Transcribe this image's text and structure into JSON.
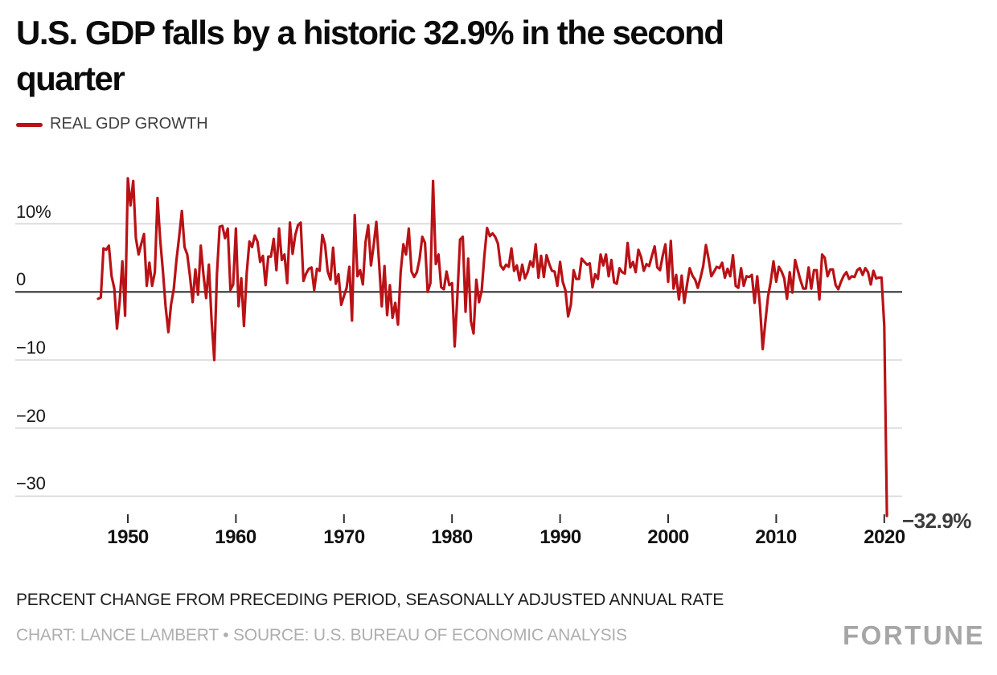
{
  "title_lines": [
    "U.S. GDP falls by a historic 32.9% in the second",
    "quarter"
  ],
  "legend": {
    "label": "REAL GDP GROWTH",
    "color": "#b91216"
  },
  "footnote": "PERCENT CHANGE FROM PRECEDING PERIOD, SEASONALLY ADJUSTED ANNUAL RATE",
  "credit": "CHART: LANCE LAMBERT • SOURCE: U.S. BUREAU OF ECONOMIC ANALYSIS",
  "brand": "FORTUNE",
  "chart_data": {
    "type": "line",
    "title": "U.S. GDP falls by a historic 32.9% in the second quarter",
    "xlabel": "",
    "ylabel": "Percent change from preceding period, seasonally adjusted annual rate",
    "xlim": [
      1947.25,
      2020.25
    ],
    "ylim": [
      -34.5,
      17.5
    ],
    "grid": true,
    "legend_position": "top-left",
    "xticks": [
      1950,
      1960,
      1970,
      1980,
      1990,
      2000,
      2010,
      2020
    ],
    "yticks": [
      {
        "value": 10,
        "label": "10%"
      },
      {
        "value": 0,
        "label": "0"
      },
      {
        "value": -10,
        "label": "−10"
      },
      {
        "value": -20,
        "label": "−20"
      },
      {
        "value": -30,
        "label": "−30"
      }
    ],
    "annotation": {
      "text": "−32.9%",
      "x": 2020.25,
      "y": -32.9
    },
    "series": [
      {
        "name": "REAL GDP GROWTH",
        "color": "#b91216",
        "frequency": "quarterly",
        "start_year": 1947,
        "start_quarter": 2,
        "values": [
          -1.0,
          -0.8,
          6.4,
          6.2,
          6.8,
          2.3,
          0.5,
          -5.4,
          -1.3,
          4.5,
          -3.5,
          16.7,
          12.7,
          16.3,
          7.9,
          5.5,
          7.1,
          8.5,
          0.9,
          4.3,
          0.9,
          2.9,
          13.8,
          7.6,
          3.1,
          -2.2,
          -5.9,
          -1.9,
          0.4,
          4.6,
          8.1,
          11.9,
          6.6,
          5.5,
          2.4,
          -1.5,
          3.3,
          -0.4,
          6.8,
          2.6,
          -0.9,
          4.0,
          -4.1,
          -10.0,
          2.6,
          9.6,
          9.7,
          7.9,
          9.3,
          0.3,
          1.1,
          9.3,
          -2.1,
          2.0,
          -5.0,
          2.7,
          7.4,
          6.6,
          8.3,
          7.4,
          4.4,
          5.3,
          1.0,
          5.2,
          5.2,
          7.8,
          3.2,
          9.3,
          4.7,
          5.5,
          1.3,
          10.2,
          5.6,
          8.4,
          9.8,
          10.2,
          1.6,
          2.7,
          3.4,
          3.6,
          0.3,
          3.4,
          3.1,
          8.4,
          7.0,
          3.0,
          1.8,
          6.5,
          1.2,
          2.6,
          -1.9,
          -0.6,
          0.6,
          3.7,
          -4.2,
          11.3,
          2.3,
          3.2,
          1.1,
          7.3,
          9.8,
          3.9,
          6.8,
          10.3,
          4.4,
          -2.1,
          3.8,
          -3.4,
          1.0,
          -3.8,
          -1.6,
          -4.8,
          2.9,
          7.0,
          5.5,
          9.3,
          3.0,
          2.2,
          2.9,
          4.8,
          8.1,
          7.2,
          0.0,
          1.3,
          16.3,
          4.1,
          5.5,
          0.7,
          0.4,
          3.0,
          1.0,
          1.3,
          -8.0,
          -0.5,
          7.7,
          8.1,
          -2.9,
          4.9,
          -4.3,
          -6.1,
          1.8,
          -1.5,
          0.2,
          5.4,
          9.4,
          8.2,
          8.6,
          8.1,
          7.1,
          3.9,
          3.3,
          4.0,
          3.7,
          6.4,
          3.1,
          3.9,
          1.7,
          4.0,
          2.0,
          2.9,
          4.5,
          3.7,
          7.0,
          2.1,
          5.3,
          2.2,
          5.4,
          4.1,
          3.1,
          3.0,
          0.9,
          4.4,
          1.5,
          0.2,
          -3.6,
          -1.9,
          3.2,
          1.9,
          1.9,
          4.9,
          4.4,
          4.0,
          4.2,
          0.7,
          2.6,
          1.9,
          5.5,
          3.9,
          5.5,
          2.3,
          4.7,
          1.4,
          1.2,
          3.5,
          2.9,
          2.7,
          7.2,
          3.6,
          4.4,
          2.9,
          6.2,
          5.1,
          3.1,
          4.1,
          3.8,
          5.3,
          6.7,
          3.6,
          3.2,
          5.3,
          7.0,
          1.5,
          7.5,
          0.5,
          2.5,
          -1.1,
          2.4,
          -1.6,
          1.1,
          3.5,
          2.4,
          1.8,
          0.6,
          2.1,
          3.8,
          6.9,
          4.8,
          2.3,
          3.0,
          3.7,
          3.5,
          4.3,
          2.1,
          3.4,
          2.3,
          5.4,
          0.9,
          0.6,
          3.5,
          0.9,
          2.3,
          2.2,
          2.5,
          -1.6,
          2.3,
          -2.1,
          -8.4,
          -4.4,
          -0.6,
          1.5,
          4.5,
          1.5,
          3.7,
          3.0,
          2.0,
          -1.0,
          2.9,
          -0.1,
          4.7,
          3.2,
          1.7,
          0.5,
          0.5,
          3.6,
          0.5,
          3.2,
          3.2,
          -1.1,
          5.5,
          5.0,
          2.3,
          3.3,
          3.3,
          1.0,
          0.4,
          1.5,
          2.4,
          2.9,
          1.9,
          2.3,
          2.2,
          3.2,
          3.5,
          2.5,
          3.5,
          2.9,
          1.1,
          3.1,
          2.0,
          2.1,
          2.1,
          -5.0,
          -32.9
        ]
      }
    ]
  }
}
